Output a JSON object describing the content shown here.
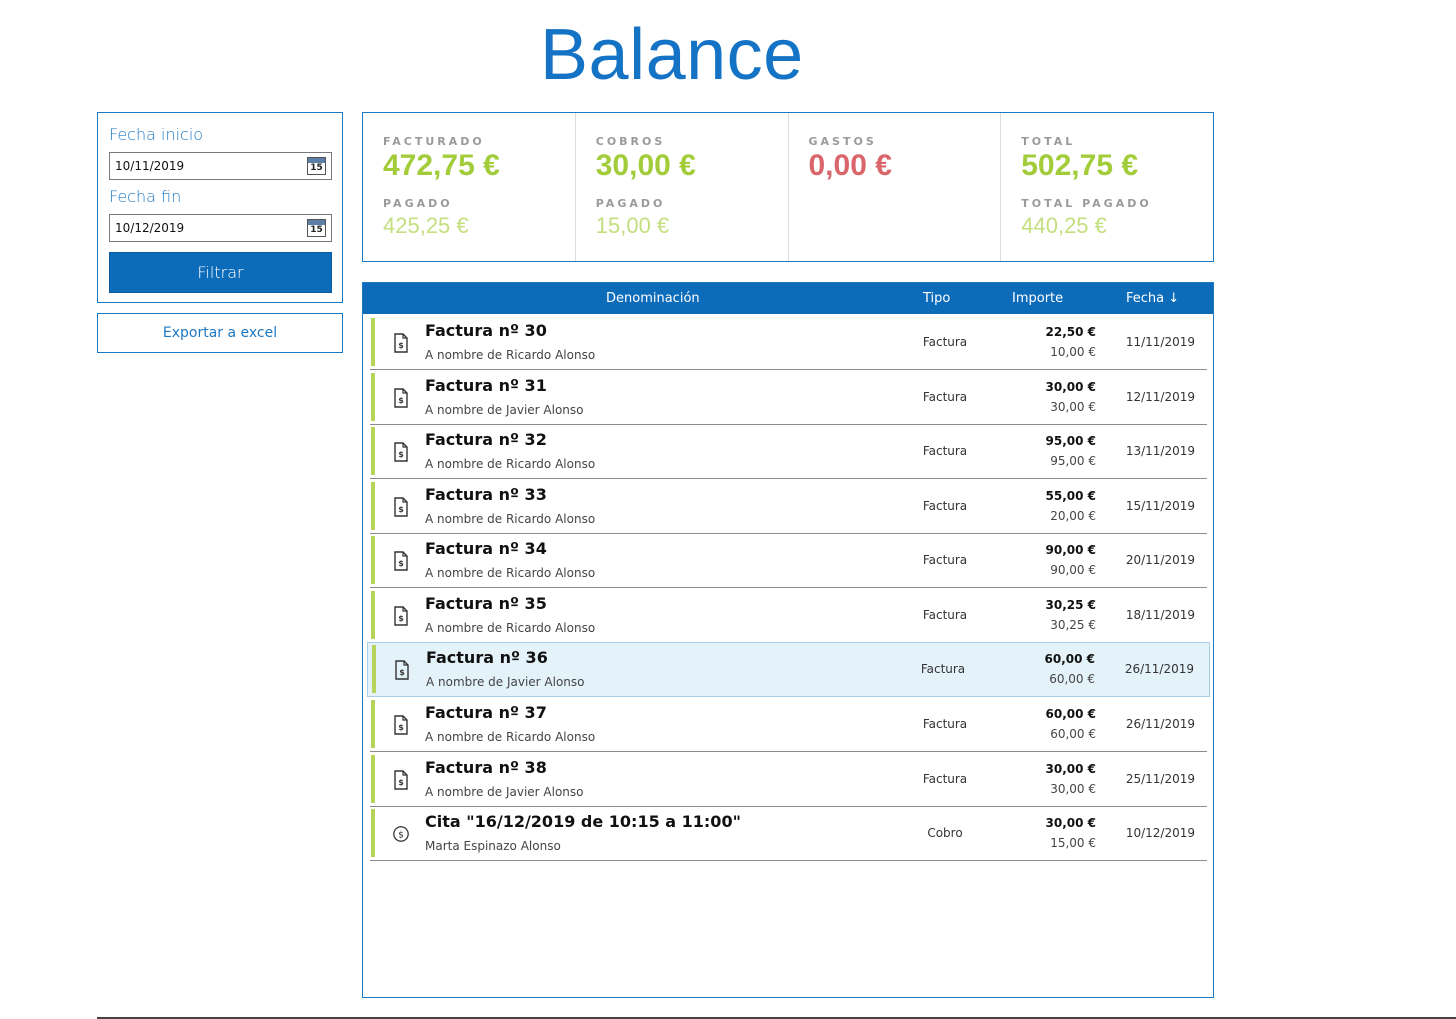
{
  "page": {
    "title": "Balance"
  },
  "filters": {
    "start_label": "Fecha inicio",
    "start_value": "10/11/2019",
    "end_label": "Fecha fin",
    "end_value": "10/12/2019",
    "calendar_day": "15",
    "filter_button": "Filtrar",
    "export_button": "Exportar a excel"
  },
  "summary": {
    "facturado": {
      "label": "FACTURADO",
      "value": "472,75 €",
      "sub_label": "PAGADO",
      "sub_value": "425,25 €"
    },
    "cobros": {
      "label": "COBROS",
      "value": "30,00 €",
      "sub_label": "PAGADO",
      "sub_value": "15,00 €"
    },
    "gastos": {
      "label": "GASTOS",
      "value": "0,00 €"
    },
    "total": {
      "label": "TOTAL",
      "value": "502,75 €",
      "sub_label": "TOTAL PAGADO",
      "sub_value": "440,25 €"
    },
    "colors": {
      "positive": "#a3cc3a",
      "positive_light": "#c3df7e",
      "negative": "#d9666a"
    }
  },
  "table": {
    "columns": {
      "denominacion": "Denominación",
      "tipo": "Tipo",
      "importe": "Importe",
      "fecha": "Fecha ↓"
    },
    "accent_color": "#b7d45a",
    "header_color": "#0d6cba",
    "rows": [
      {
        "icon": "invoice-icon",
        "title": "Factura nº 30",
        "subtitle": "A nombre de Ricardo Alonso",
        "tipo": "Factura",
        "importe": "22,50 €",
        "pagado": "10,00 €",
        "fecha": "11/11/2019",
        "selected": false
      },
      {
        "icon": "invoice-icon",
        "title": "Factura nº 31",
        "subtitle": "A nombre de Javier Alonso",
        "tipo": "Factura",
        "importe": "30,00 €",
        "pagado": "30,00 €",
        "fecha": "12/11/2019",
        "selected": false
      },
      {
        "icon": "invoice-icon",
        "title": "Factura nº 32",
        "subtitle": "A nombre de Ricardo Alonso",
        "tipo": "Factura",
        "importe": "95,00 €",
        "pagado": "95,00 €",
        "fecha": "13/11/2019",
        "selected": false
      },
      {
        "icon": "invoice-icon",
        "title": "Factura nº 33",
        "subtitle": "A nombre de Ricardo Alonso",
        "tipo": "Factura",
        "importe": "55,00 €",
        "pagado": "20,00 €",
        "fecha": "15/11/2019",
        "selected": false
      },
      {
        "icon": "invoice-icon",
        "title": "Factura nº 34",
        "subtitle": "A nombre de Ricardo Alonso",
        "tipo": "Factura",
        "importe": "90,00 €",
        "pagado": "90,00 €",
        "fecha": "20/11/2019",
        "selected": false
      },
      {
        "icon": "invoice-icon",
        "title": "Factura nº 35",
        "subtitle": "A nombre de Ricardo Alonso",
        "tipo": "Factura",
        "importe": "30,25 €",
        "pagado": "30,25 €",
        "fecha": "18/11/2019",
        "selected": false
      },
      {
        "icon": "invoice-icon",
        "title": "Factura nº 36",
        "subtitle": "A nombre de Javier Alonso",
        "tipo": "Factura",
        "importe": "60,00 €",
        "pagado": "60,00 €",
        "fecha": "26/11/2019",
        "selected": true
      },
      {
        "icon": "invoice-icon",
        "title": "Factura nº 37",
        "subtitle": "A nombre de Ricardo Alonso",
        "tipo": "Factura",
        "importe": "60,00 €",
        "pagado": "60,00 €",
        "fecha": "26/11/2019",
        "selected": false
      },
      {
        "icon": "invoice-icon",
        "title": "Factura nº 38",
        "subtitle": "A nombre de Javier Alonso",
        "tipo": "Factura",
        "importe": "30,00 €",
        "pagado": "30,00 €",
        "fecha": "25/11/2019",
        "selected": false
      },
      {
        "icon": "coin-icon",
        "title": "Cita \"16/12/2019 de 10:15 a 11:00\"",
        "subtitle": "Marta Espinazo Alonso",
        "tipo": "Cobro",
        "importe": "30,00 €",
        "pagado": "15,00 €",
        "fecha": "10/12/2019",
        "selected": false
      }
    ]
  }
}
